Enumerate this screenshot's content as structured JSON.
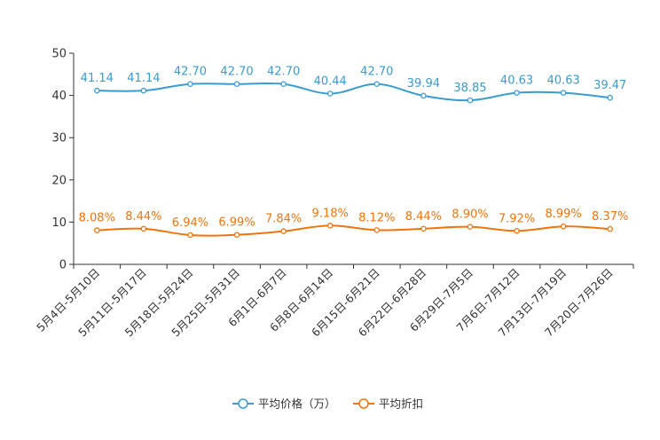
{
  "chart_data": {
    "type": "line",
    "title": "",
    "xlabel": "",
    "ylabel": "",
    "ylim": [
      0,
      50
    ],
    "yticks": [
      0,
      10,
      20,
      30,
      40,
      50
    ],
    "grid": false,
    "legend_position": "bottom-center",
    "categories": [
      "5月4日-5月10日",
      "5月11日-5月17日",
      "5月18日-5月24日",
      "5月25日-5月31日",
      "6月1日-6月7日",
      "6月8日-6月14日",
      "6月15日-6月21日",
      "6月22日-6月28日",
      "6月29日-7月5日",
      "7月6日-7月12日",
      "7月13日-7月19日",
      "7月20日-7月26日"
    ],
    "series": [
      {
        "name": "平均价格（万）",
        "color": "#3a9bd0",
        "values": [
          41.14,
          41.14,
          42.7,
          42.7,
          42.7,
          40.44,
          42.7,
          39.94,
          38.85,
          40.63,
          40.63,
          39.47
        ],
        "labels": [
          "41.14",
          "41.14",
          "42.70",
          "42.70",
          "42.70",
          "40.44",
          "42.70",
          "39.94",
          "38.85",
          "40.63",
          "40.63",
          "39.47"
        ]
      },
      {
        "name": "平均折扣",
        "color": "#f0740e",
        "values": [
          8.08,
          8.44,
          6.94,
          6.99,
          7.84,
          9.18,
          8.12,
          8.44,
          8.9,
          7.92,
          8.99,
          8.37
        ],
        "labels": [
          "8.08%",
          "8.44%",
          "6.94%",
          "6.99%",
          "7.84%",
          "9.18%",
          "8.12%",
          "8.44%",
          "8.90%",
          "7.92%",
          "8.99%",
          "8.37%"
        ]
      }
    ]
  }
}
